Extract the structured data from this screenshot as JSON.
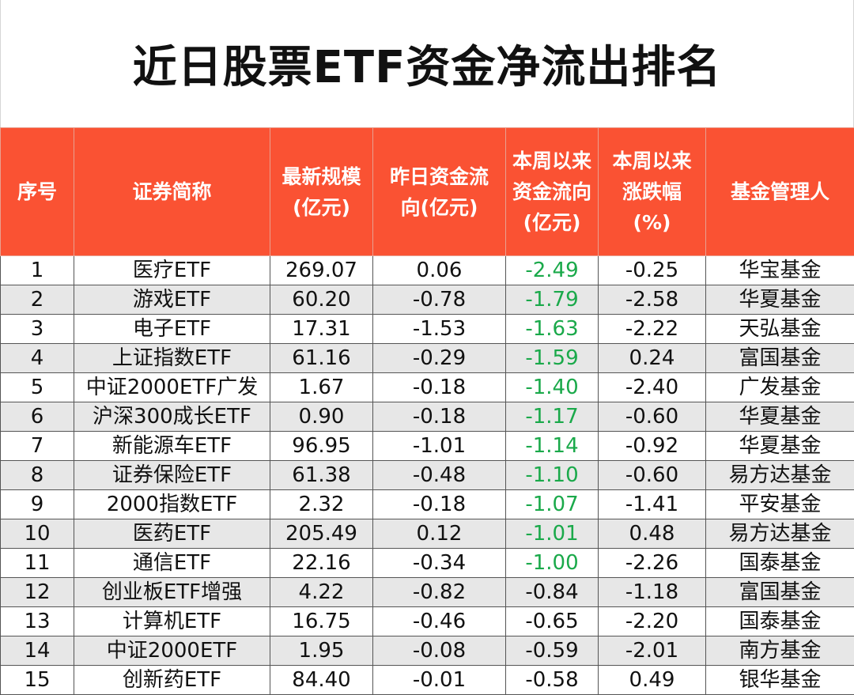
{
  "title": "近日股票ETF资金净流出排名",
  "headers": {
    "col1": "序号",
    "col2": "证券简称",
    "col3_line1": "最新规模",
    "col3_line2": "(亿元)",
    "col4_line1": "昨日资金流",
    "col4_line2": "向(亿元)",
    "col5_line1": "本周以来",
    "col5_line2": "资金流向",
    "col5_line3": "(亿元)",
    "col6_line1": "本周以来",
    "col6_line2": "涨跌幅",
    "col6_line3": "(%)",
    "col7": "基金管理人"
  },
  "colors": {
    "header_bg": "#fa5233",
    "header_text": "#ffffff",
    "negative_flow": "#1aa94a",
    "stripe": "#e7e7e7"
  },
  "rows": [
    {
      "no": "1",
      "name": "医疗ETF",
      "scale": "269.07",
      "yesterday": "0.06",
      "week_flow": "-2.49",
      "week_change": "-0.25",
      "manager": "华宝基金",
      "green": true
    },
    {
      "no": "2",
      "name": "游戏ETF",
      "scale": "60.20",
      "yesterday": "-0.78",
      "week_flow": "-1.79",
      "week_change": "-2.58",
      "manager": "华夏基金",
      "green": true
    },
    {
      "no": "3",
      "name": "电子ETF",
      "scale": "17.31",
      "yesterday": "-1.53",
      "week_flow": "-1.63",
      "week_change": "-2.22",
      "manager": "天弘基金",
      "green": true
    },
    {
      "no": "4",
      "name": "上证指数ETF",
      "scale": "61.16",
      "yesterday": "-0.29",
      "week_flow": "-1.59",
      "week_change": "0.24",
      "manager": "富国基金",
      "green": true
    },
    {
      "no": "5",
      "name": "中证2000ETF广发",
      "scale": "1.67",
      "yesterday": "-0.18",
      "week_flow": "-1.40",
      "week_change": "-2.40",
      "manager": "广发基金",
      "green": true
    },
    {
      "no": "6",
      "name": "沪深300成长ETF",
      "scale": "0.90",
      "yesterday": "-0.18",
      "week_flow": "-1.17",
      "week_change": "-0.60",
      "manager": "华夏基金",
      "green": true
    },
    {
      "no": "7",
      "name": "新能源车ETF",
      "scale": "96.95",
      "yesterday": "-1.01",
      "week_flow": "-1.14",
      "week_change": "-0.92",
      "manager": "华夏基金",
      "green": true
    },
    {
      "no": "8",
      "name": "证券保险ETF",
      "scale": "61.38",
      "yesterday": "-0.48",
      "week_flow": "-1.10",
      "week_change": "-0.60",
      "manager": "易方达基金",
      "green": true
    },
    {
      "no": "9",
      "name": "2000指数ETF",
      "scale": "2.32",
      "yesterday": "-0.18",
      "week_flow": "-1.07",
      "week_change": "-1.41",
      "manager": "平安基金",
      "green": true
    },
    {
      "no": "10",
      "name": "医药ETF",
      "scale": "205.49",
      "yesterday": "0.12",
      "week_flow": "-1.01",
      "week_change": "0.48",
      "manager": "易方达基金",
      "green": true
    },
    {
      "no": "11",
      "name": "通信ETF",
      "scale": "22.16",
      "yesterday": "-0.34",
      "week_flow": "-1.00",
      "week_change": "-2.26",
      "manager": "国泰基金",
      "green": true
    },
    {
      "no": "12",
      "name": "创业板ETF增强",
      "scale": "4.22",
      "yesterday": "-0.82",
      "week_flow": "-0.84",
      "week_change": "-1.18",
      "manager": "富国基金",
      "green": false
    },
    {
      "no": "13",
      "name": "计算机ETF",
      "scale": "16.75",
      "yesterday": "-0.46",
      "week_flow": "-0.65",
      "week_change": "-2.20",
      "manager": "国泰基金",
      "green": false
    },
    {
      "no": "14",
      "name": "中证2000ETF",
      "scale": "1.95",
      "yesterday": "-0.08",
      "week_flow": "-0.59",
      "week_change": "-2.01",
      "manager": "南方基金",
      "green": false
    },
    {
      "no": "15",
      "name": "创新药ETF",
      "scale": "84.40",
      "yesterday": "-0.01",
      "week_flow": "-0.58",
      "week_change": "0.49",
      "manager": "银华基金",
      "green": false
    }
  ]
}
